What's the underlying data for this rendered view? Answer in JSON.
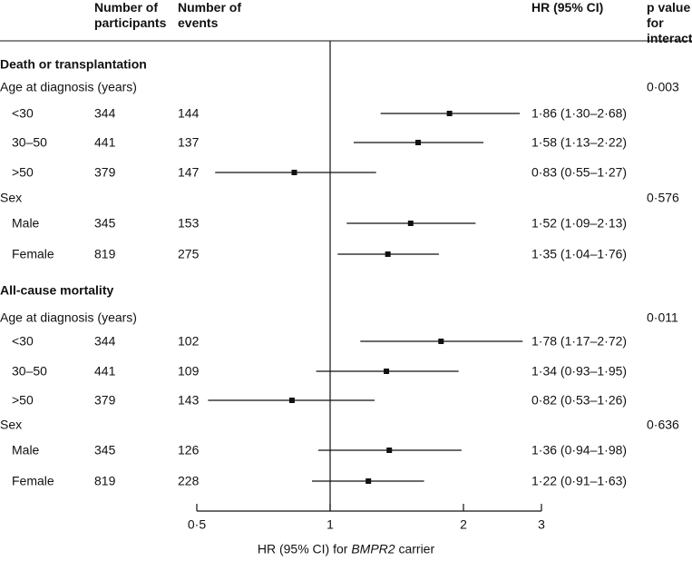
{
  "chart_data": {
    "type": "forest",
    "columns": {
      "participants": "Number of participants",
      "events": "Number of events",
      "hr": "HR (95% CI)",
      "p": "p value for interaction"
    },
    "x_label": "HR (95% CI) for",
    "x_label_italic": "BMPR2",
    "x_label_suffix": "carrier",
    "log_x": true,
    "xlim": [
      0.5,
      3
    ],
    "xticks": [
      {
        "value": 0.5,
        "label": "0·5"
      },
      1,
      2,
      3
    ],
    "reference": 1,
    "rows": [
      {
        "kind": "section",
        "label": "Death or transplantation"
      },
      {
        "kind": "group",
        "label": "Age at diagnosis (years)",
        "p": "0·003"
      },
      {
        "kind": "item",
        "label": "<30",
        "participants": 344,
        "events": 144,
        "hr": 1.86,
        "ci": [
          1.3,
          2.68
        ],
        "value_label": "1·86 (1·30–2·68)"
      },
      {
        "kind": "item",
        "label": "30–50",
        "participants": 441,
        "events": 137,
        "hr": 1.58,
        "ci": [
          1.13,
          2.22
        ],
        "value_label": "1·58 (1·13–2·22)"
      },
      {
        "kind": "item",
        "label": ">50",
        "participants": 379,
        "events": 147,
        "hr": 0.83,
        "ci": [
          0.55,
          1.27
        ],
        "value_label": "0·83 (0·55–1·27)"
      },
      {
        "kind": "group",
        "label": "Sex",
        "p": "0·576"
      },
      {
        "kind": "item",
        "label": "Male",
        "participants": 345,
        "events": 153,
        "hr": 1.52,
        "ci": [
          1.09,
          2.13
        ],
        "value_label": "1·52 (1·09–2·13)"
      },
      {
        "kind": "item",
        "label": "Female",
        "participants": 819,
        "events": 275,
        "hr": 1.35,
        "ci": [
          1.04,
          1.76
        ],
        "value_label": "1·35 (1·04–1·76)"
      },
      {
        "kind": "section",
        "label": "All-cause mortality"
      },
      {
        "kind": "group",
        "label": "Age at diagnosis (years)",
        "p": "0·011"
      },
      {
        "kind": "item",
        "label": "<30",
        "participants": 344,
        "events": 102,
        "hr": 1.78,
        "ci": [
          1.17,
          2.72
        ],
        "value_label": "1·78 (1·17–2·72)"
      },
      {
        "kind": "item",
        "label": "30–50",
        "participants": 441,
        "events": 109,
        "hr": 1.34,
        "ci": [
          0.93,
          1.95
        ],
        "value_label": "1·34 (0·93–1·95)"
      },
      {
        "kind": "item",
        "label": ">50",
        "participants": 379,
        "events": 143,
        "hr": 0.82,
        "ci": [
          0.53,
          1.26
        ],
        "value_label": "0·82 (0·53–1·26)"
      },
      {
        "kind": "group",
        "label": "Sex",
        "p": "0·636"
      },
      {
        "kind": "item",
        "label": "Male",
        "participants": 345,
        "events": 126,
        "hr": 1.36,
        "ci": [
          0.94,
          1.98
        ],
        "value_label": "1·36 (0·94–1·98)"
      },
      {
        "kind": "item",
        "label": "Female",
        "participants": 819,
        "events": 228,
        "hr": 1.22,
        "ci": [
          0.91,
          1.63
        ],
        "value_label": "1·22 (0·91–1·63)"
      }
    ]
  }
}
